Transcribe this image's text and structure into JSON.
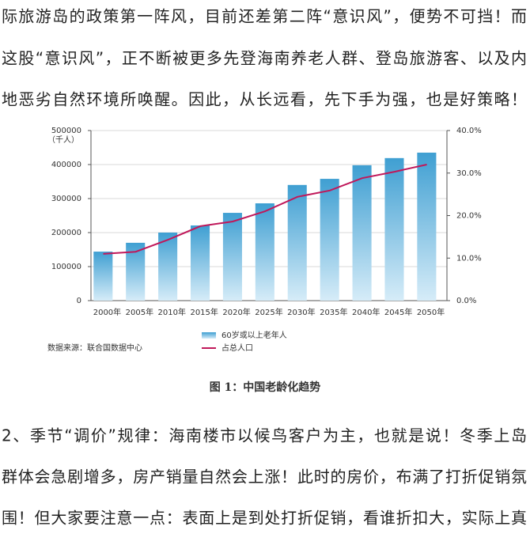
{
  "paragraph1": {
    "lines": [
      "际旅游岛的政策第一阵风，目前还差第二阵“意识风”，便势不可挡！而",
      "这股“意识风”，正不断被更多先登海南养老人群、登岛旅游客、以及内",
      "地恶劣自然环境所唤醒。因此，从长远看，先下手为强，也是好策略！"
    ]
  },
  "chart_data": {
    "type": "bar",
    "y_unit": "（千人）",
    "source": "数据来源：联合国数据中心",
    "categories": [
      "2000年",
      "2005年",
      "2010年",
      "2015年",
      "2020年",
      "2025年",
      "2030年",
      "2035年",
      "2040年",
      "2045年",
      "2050年"
    ],
    "series": [
      {
        "name": "60岁或以上老年人",
        "color": "#3f9fd2",
        "values": [
          144000,
          170000,
          200000,
          221000,
          258000,
          286000,
          340000,
          358000,
          398000,
          419000,
          435000
        ]
      },
      {
        "name": "占总人口",
        "color": "#c0185a",
        "axis": "y2",
        "values": [
          11.0,
          11.5,
          14.3,
          17.5,
          18.6,
          21.0,
          24.4,
          25.9,
          28.8,
          30.3,
          32.0
        ]
      }
    ],
    "ylim": [
      0,
      500000
    ],
    "yticks": [
      0,
      100000,
      200000,
      300000,
      400000,
      500000
    ],
    "y2lim": [
      0,
      40
    ],
    "y2ticks": [
      {
        "value": 0,
        "label": "0.0%"
      },
      {
        "value": 10,
        "label": "10.0%"
      },
      {
        "value": 20,
        "label": "20.0%"
      },
      {
        "value": 30,
        "label": "30.0%"
      },
      {
        "value": 40,
        "label": "40.0%"
      }
    ],
    "grid": true
  },
  "caption": "图 1：中国老龄化趋势",
  "paragraph2": {
    "lines": [
      "2、季节“调价”规律：海南楼市以候鸟客户为主，也就是说！冬季上岛",
      "群体会急剧增多，房产销量自然会上涨！此时的房价，布满了打折促销氛",
      "围！但大家要注意一点：表面上是到处打折促销，看谁折扣大，实际上真"
    ]
  }
}
